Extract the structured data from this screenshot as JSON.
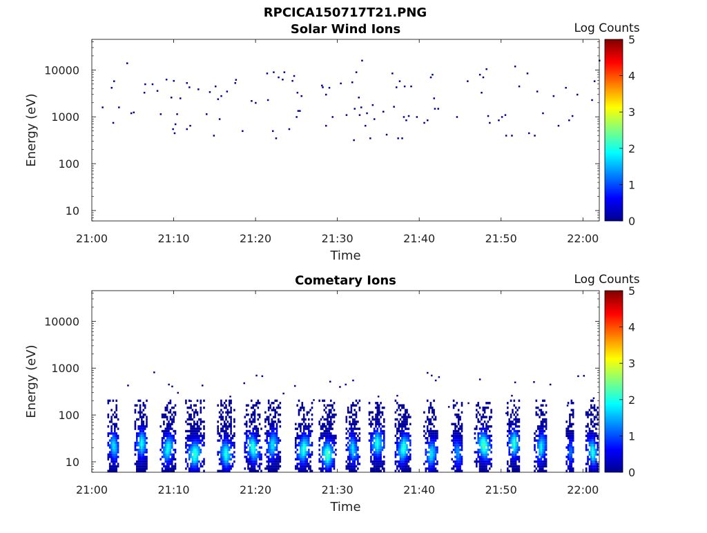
{
  "figure_title": "RPCICA150717T21.PNG",
  "chart_data": [
    {
      "type": "heatmap",
      "title": "Solar Wind Ions",
      "xlabel": "Time",
      "ylabel": "Energy (eV)",
      "x_ticks": [
        "21:00",
        "21:10",
        "21:20",
        "21:30",
        "21:40",
        "21:50",
        "22:00"
      ],
      "x_range_minutes": [
        0,
        62
      ],
      "y_ticks": [
        "10",
        "100",
        "1000",
        "10000"
      ],
      "y_scale": "log",
      "y_range": [
        6,
        45000
      ],
      "colorbar": {
        "label": "Log Counts",
        "ticks": [
          "0",
          "1",
          "2",
          "3",
          "4",
          "5"
        ],
        "range": [
          0,
          5
        ],
        "colormap": "jet"
      },
      "description": "Sparse scattered single counts (log value ~0.1) across 21:01-22:02 at energies 300-16000 eV",
      "points": [
        [
          1.3,
          1600,
          0.1
        ],
        [
          2.4,
          4200,
          0.1
        ],
        [
          2.6,
          750,
          0.1
        ],
        [
          2.7,
          5800,
          0.1
        ],
        [
          3.3,
          1600,
          0.1
        ],
        [
          4.3,
          14000,
          0.1
        ],
        [
          4.8,
          1200,
          0.1
        ],
        [
          5.1,
          1250,
          0.1
        ],
        [
          6.4,
          3300,
          0.1
        ],
        [
          6.5,
          5000,
          0.1
        ],
        [
          7.4,
          5000,
          0.1
        ],
        [
          8.0,
          3600,
          0.1
        ],
        [
          8.4,
          1150,
          0.1
        ],
        [
          9.1,
          6300,
          0.1
        ],
        [
          9.7,
          2600,
          0.1
        ],
        [
          9.9,
          550,
          0.1
        ],
        [
          10.0,
          5900,
          0.1
        ],
        [
          10.1,
          450,
          0.1
        ],
        [
          10.2,
          700,
          0.1
        ],
        [
          10.4,
          1150,
          0.1
        ],
        [
          10.8,
          2500,
          0.1
        ],
        [
          11.6,
          5300,
          0.1
        ],
        [
          11.6,
          550,
          0.1
        ],
        [
          11.9,
          4300,
          0.1
        ],
        [
          12.0,
          650,
          0.1
        ],
        [
          13.0,
          3900,
          0.1
        ],
        [
          14.0,
          1150,
          0.1
        ],
        [
          14.4,
          3400,
          0.1
        ],
        [
          14.9,
          400,
          0.1
        ],
        [
          15.1,
          4500,
          0.1
        ],
        [
          15.4,
          2400,
          0.1
        ],
        [
          15.6,
          900,
          0.1
        ],
        [
          15.8,
          2800,
          0.1
        ],
        [
          16.5,
          3500,
          0.1
        ],
        [
          17.5,
          5300,
          0.1
        ],
        [
          17.6,
          6200,
          0.1
        ],
        [
          18.4,
          500,
          0.1
        ],
        [
          19.5,
          2200,
          0.1
        ],
        [
          20.0,
          2000,
          0.1
        ],
        [
          21.4,
          8500,
          0.1
        ],
        [
          21.5,
          2300,
          0.1
        ],
        [
          22.1,
          500,
          0.1
        ],
        [
          22.2,
          9000,
          0.1
        ],
        [
          22.5,
          350,
          0.1
        ],
        [
          22.8,
          7000,
          0.1
        ],
        [
          23.3,
          6300,
          0.1
        ],
        [
          23.5,
          9000,
          0.1
        ],
        [
          24.1,
          550,
          0.1
        ],
        [
          24.5,
          5900,
          0.1
        ],
        [
          24.7,
          7500,
          0.1
        ],
        [
          25.0,
          1000,
          0.1
        ],
        [
          25.1,
          3300,
          0.1
        ],
        [
          25.2,
          1350,
          0.1
        ],
        [
          25.4,
          1350,
          0.1
        ],
        [
          25.6,
          2800,
          0.1
        ],
        [
          28.1,
          4700,
          0.1
        ],
        [
          28.2,
          4300,
          0.1
        ],
        [
          28.6,
          650,
          0.1
        ],
        [
          28.6,
          3000,
          0.1
        ],
        [
          29.0,
          4200,
          0.1
        ],
        [
          29.4,
          1000,
          0.1
        ],
        [
          30.4,
          5200,
          0.1
        ],
        [
          31.1,
          1100,
          0.1
        ],
        [
          31.8,
          5500,
          0.1
        ],
        [
          32.0,
          320,
          0.1
        ],
        [
          32.1,
          1500,
          0.1
        ],
        [
          32.3,
          9000,
          0.1
        ],
        [
          32.6,
          2600,
          0.1
        ],
        [
          32.7,
          1100,
          0.1
        ],
        [
          32.9,
          1600,
          0.1
        ],
        [
          33.0,
          16000,
          0.1
        ],
        [
          33.4,
          650,
          0.1
        ],
        [
          33.6,
          1200,
          0.1
        ],
        [
          34.0,
          350,
          0.1
        ],
        [
          34.3,
          1800,
          0.1
        ],
        [
          34.5,
          900,
          0.1
        ],
        [
          35.6,
          1300,
          0.1
        ],
        [
          36.0,
          420,
          0.1
        ],
        [
          36.7,
          8500,
          0.1
        ],
        [
          36.9,
          1650,
          0.1
        ],
        [
          37.2,
          4300,
          0.1
        ],
        [
          37.6,
          5800,
          0.1
        ],
        [
          37.4,
          350,
          0.1
        ],
        [
          37.9,
          350,
          0.1
        ],
        [
          38.1,
          1000,
          0.1
        ],
        [
          38.2,
          4500,
          0.1
        ],
        [
          38.4,
          850,
          0.1
        ],
        [
          38.7,
          1050,
          0.1
        ],
        [
          39.0,
          4500,
          0.1
        ],
        [
          39.7,
          1000,
          0.1
        ],
        [
          40.6,
          750,
          0.1
        ],
        [
          41.0,
          850,
          0.1
        ],
        [
          41.4,
          7000,
          0.1
        ],
        [
          41.6,
          8000,
          0.1
        ],
        [
          41.8,
          2500,
          0.1
        ],
        [
          41.9,
          1500,
          0.1
        ],
        [
          42.3,
          1500,
          0.1
        ],
        [
          44.6,
          1000,
          0.1
        ],
        [
          45.9,
          5800,
          0.1
        ],
        [
          47.4,
          8000,
          0.1
        ],
        [
          47.6,
          3300,
          0.1
        ],
        [
          47.8,
          7000,
          0.1
        ],
        [
          48.2,
          10500,
          0.1
        ],
        [
          48.4,
          1050,
          0.1
        ],
        [
          48.6,
          750,
          0.1
        ],
        [
          49.7,
          850,
          0.1
        ],
        [
          50.1,
          1000,
          0.1
        ],
        [
          50.5,
          1100,
          0.1
        ],
        [
          50.6,
          400,
          0.1
        ],
        [
          51.3,
          400,
          0.1
        ],
        [
          51.7,
          12000,
          0.1
        ],
        [
          52.2,
          4500,
          0.1
        ],
        [
          53.2,
          8500,
          0.1
        ],
        [
          53.4,
          450,
          0.1
        ],
        [
          54.1,
          400,
          0.1
        ],
        [
          54.4,
          3500,
          0.1
        ],
        [
          55.1,
          1200,
          0.1
        ],
        [
          56.4,
          2800,
          0.1
        ],
        [
          57.0,
          650,
          0.1
        ],
        [
          57.9,
          4200,
          0.1
        ],
        [
          58.3,
          850,
          0.1
        ],
        [
          58.7,
          1050,
          0.1
        ],
        [
          59.3,
          3000,
          0.1
        ],
        [
          61.1,
          2300,
          0.1
        ],
        [
          61.4,
          5800,
          0.1
        ],
        [
          62.0,
          16000,
          0.1
        ]
      ]
    },
    {
      "type": "heatmap",
      "title": "Cometary Ions",
      "xlabel": "Time",
      "ylabel": "Energy (eV)",
      "x_ticks": [
        "21:00",
        "21:10",
        "21:20",
        "21:30",
        "21:40",
        "21:50",
        "22:00"
      ],
      "x_range_minutes": [
        0,
        62
      ],
      "y_ticks": [
        "10",
        "100",
        "1000",
        "10000"
      ],
      "y_scale": "log",
      "y_range": [
        6,
        45000
      ],
      "colorbar": {
        "label": "Log Counts",
        "ticks": [
          "0",
          "1",
          "2",
          "3",
          "4",
          "5"
        ],
        "range": [
          0,
          5
        ],
        "colormap": "jet"
      },
      "description": "Recurrent low-energy bursts (~6-200 eV) roughly every 3 minutes, peak log counts ~2, plus scattered high-energy single counts",
      "bursts": [
        [
          2.6,
          0.7,
          1.8
        ],
        [
          6.0,
          0.8,
          1.9
        ],
        [
          9.2,
          0.9,
          2.0
        ],
        [
          12.5,
          1.1,
          2.2
        ],
        [
          16.3,
          1.0,
          2.0
        ],
        [
          19.6,
          1.0,
          2.1
        ],
        [
          22.0,
          0.9,
          1.8
        ],
        [
          25.8,
          1.0,
          2.1
        ],
        [
          28.7,
          1.0,
          2.3
        ],
        [
          31.8,
          0.8,
          1.7
        ],
        [
          34.8,
          1.0,
          2.0
        ],
        [
          38.0,
          1.0,
          2.1
        ],
        [
          41.4,
          0.9,
          1.8
        ],
        [
          44.6,
          0.7,
          1.4
        ],
        [
          47.8,
          1.1,
          2.3
        ],
        [
          51.5,
          0.8,
          2.1
        ],
        [
          54.8,
          0.8,
          1.8
        ],
        [
          58.4,
          0.5,
          1.2
        ],
        [
          61.1,
          0.8,
          2.0
        ]
      ],
      "points": [
        [
          4.4,
          430,
          0.1
        ],
        [
          7.6,
          820,
          0.1
        ],
        [
          9.4,
          450,
          0.1
        ],
        [
          9.8,
          410,
          0.1
        ],
        [
          10.5,
          300,
          0.1
        ],
        [
          12.1,
          200,
          0.1
        ],
        [
          13.5,
          430,
          0.1
        ],
        [
          16.9,
          250,
          0.1
        ],
        [
          18.6,
          480,
          0.1
        ],
        [
          20.1,
          700,
          0.1
        ],
        [
          20.8,
          680,
          0.1
        ],
        [
          23.4,
          290,
          0.1
        ],
        [
          24.8,
          420,
          0.1
        ],
        [
          27.1,
          210,
          0.1
        ],
        [
          29.1,
          520,
          0.1
        ],
        [
          30.3,
          400,
          0.1
        ],
        [
          31.0,
          450,
          0.1
        ],
        [
          31.9,
          550,
          0.1
        ],
        [
          35.0,
          250,
          0.1
        ],
        [
          37.3,
          260,
          0.1
        ],
        [
          41.0,
          800,
          0.1
        ],
        [
          41.5,
          700,
          0.1
        ],
        [
          42.0,
          550,
          0.1
        ],
        [
          42.4,
          650,
          0.1
        ],
        [
          43.6,
          150,
          0.1
        ],
        [
          46.0,
          180,
          0.1
        ],
        [
          47.4,
          580,
          0.1
        ],
        [
          50.6,
          110,
          0.1
        ],
        [
          51.3,
          260,
          0.1
        ],
        [
          51.7,
          500,
          0.1
        ],
        [
          54.0,
          510,
          0.1
        ],
        [
          56.0,
          450,
          0.1
        ],
        [
          58.1,
          160,
          0.1
        ],
        [
          59.4,
          680,
          0.1
        ],
        [
          60.1,
          690,
          0.1
        ],
        [
          61.3,
          230,
          0.1
        ]
      ]
    }
  ]
}
